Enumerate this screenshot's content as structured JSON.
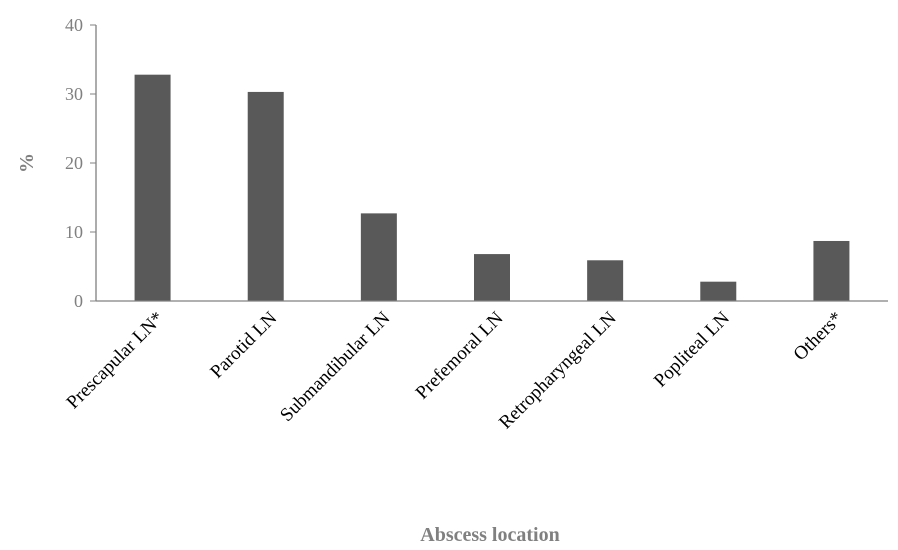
{
  "chart_data": {
    "type": "bar",
    "title": "",
    "xlabel": "Abscess location",
    "ylabel": "%",
    "ylim": [
      0,
      40
    ],
    "yticks": [
      "0",
      "10",
      "20",
      "30",
      "40"
    ],
    "categories": [
      "Prescapular LN*",
      "Parotid LN",
      "Submandibular LN",
      "Prefemoral LN",
      "Retropharyngeal LN",
      "Popliteal LN",
      "Others*"
    ],
    "values": [
      32.8,
      30.3,
      12.7,
      6.8,
      5.9,
      2.8,
      8.7
    ],
    "grid": false,
    "legend": "none",
    "bar_color": "#595959",
    "axis_color": "#808080"
  }
}
